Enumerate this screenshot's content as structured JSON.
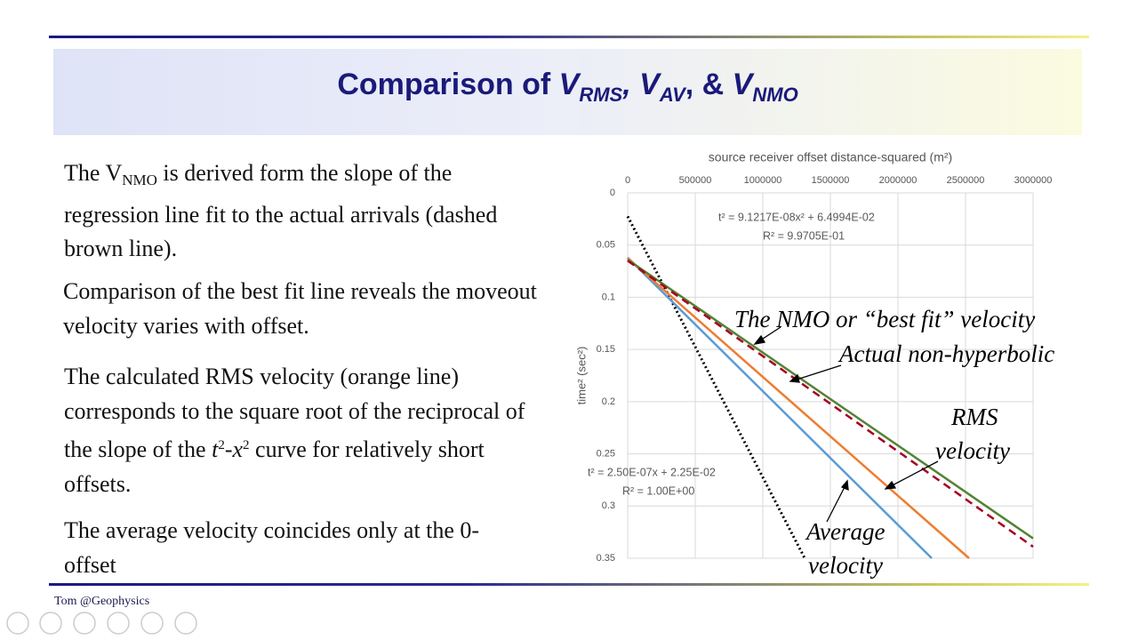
{
  "slide": {
    "title": [
      "Comparison of ",
      "V",
      "RMS",
      ", ",
      "V",
      "AV",
      ", & ",
      "V",
      "NMO"
    ],
    "paragraphs": [
      [
        "The V",
        "NMO",
        " is derived form the slope of the regression line fit to the actual arrivals (dashed brown line)."
      ],
      [
        "Comparison of the best fit line reveals the moveout velocity varies with offset."
      ],
      [
        "The calculated RMS velocity (orange line) corresponds to the square root of the reciprocal of the slope of the ",
        "t",
        "2",
        "-",
        "x",
        "2",
        " curve for relatively short offsets."
      ],
      [
        "The average velocity coincides only at the 0-offset"
      ]
    ],
    "footer": "Tom @Geophysics"
  },
  "chart_data": {
    "type": "line",
    "x_label": "source receiver offset distance-squared (m²)",
    "y_label": "time² (sec²)",
    "xlim": [
      0,
      3000000
    ],
    "xticks": [
      0,
      500000,
      1000000,
      1500000,
      2000000,
      2500000,
      3000000
    ],
    "ylim": [
      0,
      0.35
    ],
    "yticks": [
      0,
      0.05,
      0.1,
      0.15,
      0.2,
      0.25,
      0.3,
      0.35
    ],
    "y_inverted": true,
    "x_axis_top": true,
    "grid": true,
    "series": [
      {
        "color": "#000000",
        "style": "dotted",
        "x": [
          0,
          1310000
        ],
        "values": [
          0.0225,
          0.35
        ]
      },
      {
        "color": "#5b9bd5",
        "style": "solid",
        "x": [
          0,
          2250000
        ],
        "values": [
          0.062,
          0.35
        ]
      },
      {
        "color": "#ed7d31",
        "style": "solid",
        "x": [
          0,
          2526000
        ],
        "values": [
          0.0625,
          0.35
        ]
      },
      {
        "color": "#548235",
        "style": "solid",
        "x": [
          0,
          3000000
        ],
        "values": [
          0.064,
          0.331
        ]
      },
      {
        "color": "#a50021",
        "style": "dashed",
        "x": [
          0,
          3000000
        ],
        "values": [
          0.065,
          0.339
        ]
      }
    ],
    "equations": [
      "t² = 9.1217E-08x² + 6.4994E-02",
      "R² = 9.9705E-01",
      "t² = 2.50E-07x + 2.25E-02",
      "R² = 1.00E+00"
    ],
    "annotations": [
      "The NMO or “best fit” velocity",
      "Actual non-hyperbolic",
      "RMS",
      "velocity",
      "Average",
      "velocity"
    ]
  }
}
